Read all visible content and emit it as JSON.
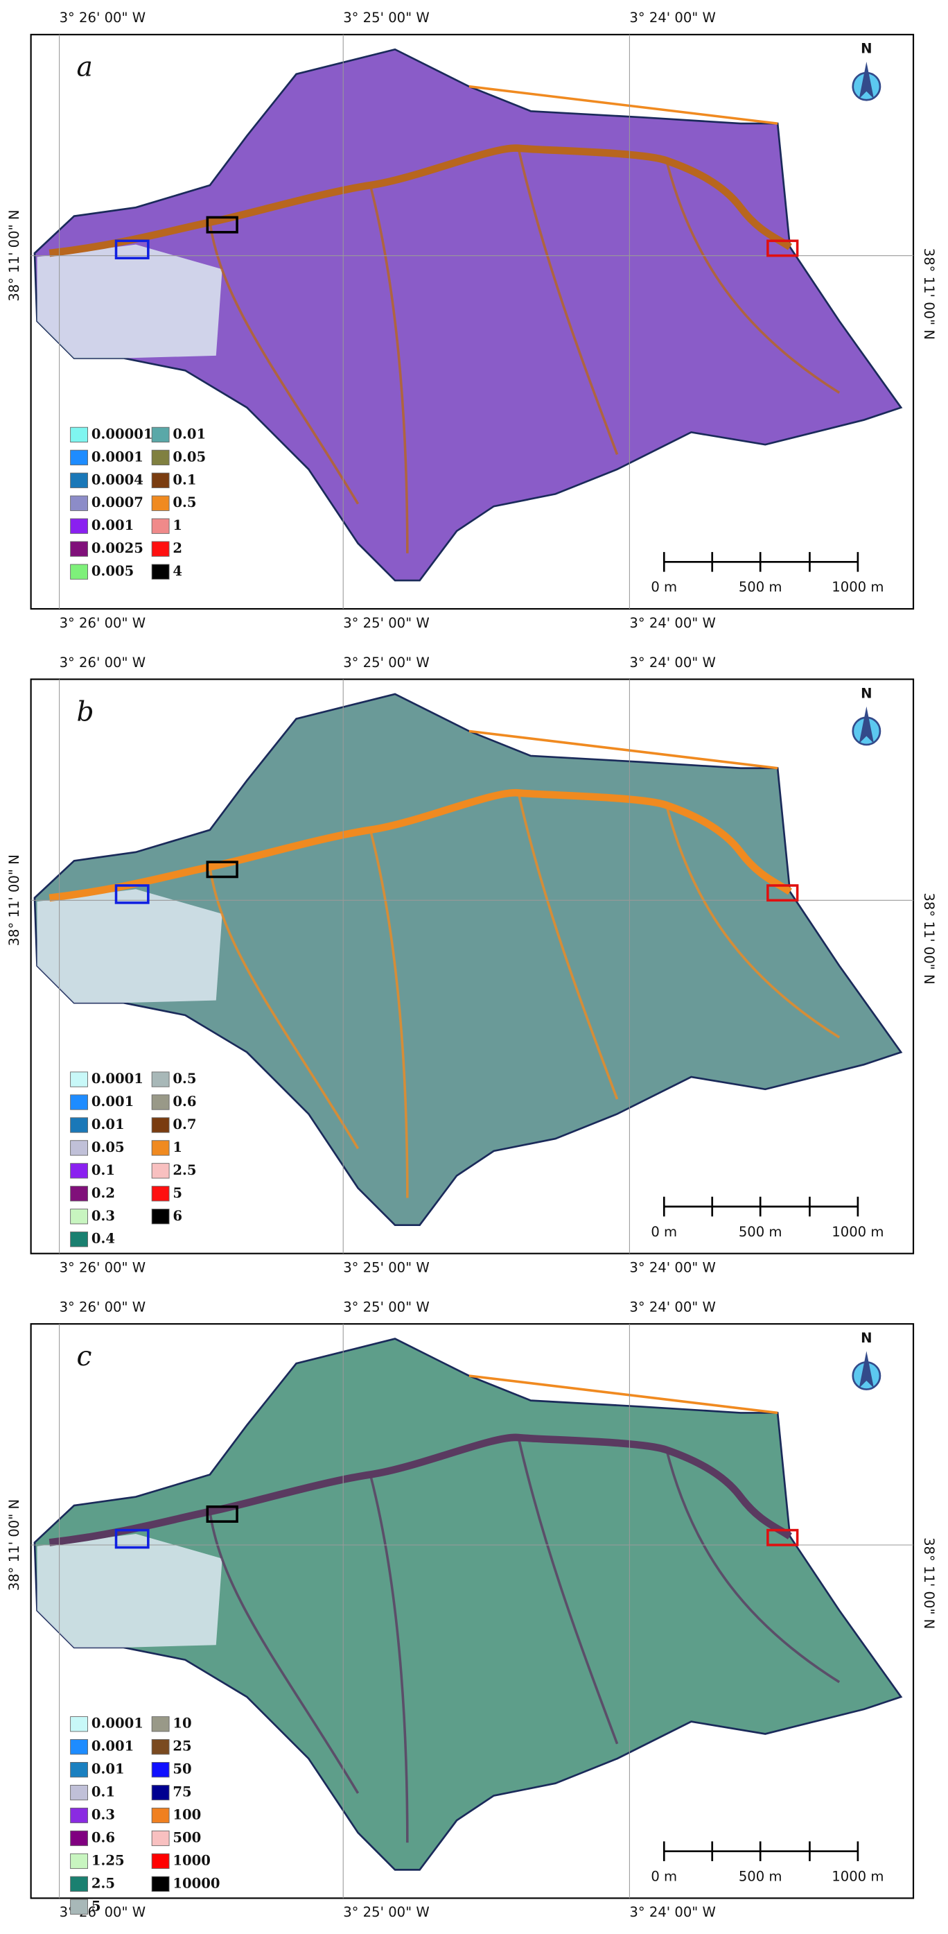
{
  "panels": [
    {
      "label": "a",
      "top_lon": [
        "3° 26' 00\" W",
        "3° 25' 00\" W",
        "3° 24' 00\" W"
      ],
      "bottom_lon": [
        "3° 26' 00\" W",
        "3° 25' 00\" W",
        "3° 24' 00\" W"
      ],
      "left_lat": "38° 11' 00\" N",
      "right_lat": "38° 11' 00\" N",
      "north": "N",
      "fill": "#8a5cc8",
      "channel_color": "#b8661e",
      "legend": [
        {
          "label": "0.00001",
          "color": "#7ff5f0"
        },
        {
          "label": "0.0001",
          "color": "#1e8cff"
        },
        {
          "label": "0.0004",
          "color": "#1a78b8"
        },
        {
          "label": "0.0007",
          "color": "#8c8cc8"
        },
        {
          "label": "0.001",
          "color": "#8a20f0"
        },
        {
          "label": "0.0025",
          "color": "#80107a"
        },
        {
          "label": "0.005",
          "color": "#7ef07a"
        },
        {
          "label": "0.01",
          "color": "#5aa8a8"
        },
        {
          "label": "0.05",
          "color": "#808040"
        },
        {
          "label": "0.1",
          "color": "#7a3c10"
        },
        {
          "label": "0.5",
          "color": "#f08a20"
        },
        {
          "label": "1",
          "color": "#f08a8a"
        },
        {
          "label": "2",
          "color": "#ff1010"
        },
        {
          "label": "4",
          "color": "#000000"
        }
      ],
      "scale": [
        "0 m",
        "500 m",
        "1000 m"
      ]
    },
    {
      "label": "b",
      "top_lon": [
        "3° 26' 00\" W",
        "3° 25' 00\" W",
        "3° 24' 00\" W"
      ],
      "bottom_lon": [
        "3° 26' 00\" W",
        "3° 25' 00\" W",
        "3° 24' 00\" W"
      ],
      "left_lat": "38° 11' 00\" N",
      "right_lat": "38° 11' 00\" N",
      "north": "N",
      "fill": "#6a9a98",
      "channel_color": "#f08a20",
      "legend": [
        {
          "label": "0.0001",
          "color": "#c8f8f8"
        },
        {
          "label": "0.001",
          "color": "#1e8cff"
        },
        {
          "label": "0.01",
          "color": "#1a78b8"
        },
        {
          "label": "0.05",
          "color": "#c0c0d8"
        },
        {
          "label": "0.1",
          "color": "#8a20f0"
        },
        {
          "label": "0.2",
          "color": "#80107a"
        },
        {
          "label": "0.3",
          "color": "#c8f5c0"
        },
        {
          "label": "0.4",
          "color": "#1a8070"
        },
        {
          "label": "0.5",
          "color": "#a8b8b8"
        },
        {
          "label": "0.6",
          "color": "#999988"
        },
        {
          "label": "0.7",
          "color": "#7a3c10"
        },
        {
          "label": "1",
          "color": "#f08a20"
        },
        {
          "label": "2.5",
          "color": "#f8c0c0"
        },
        {
          "label": "5",
          "color": "#ff1010"
        },
        {
          "label": "6",
          "color": "#000000"
        }
      ],
      "scale": [
        "0 m",
        "500 m",
        "1000 m"
      ]
    },
    {
      "label": "c",
      "top_lon": [
        "3° 26' 00\" W",
        "3° 25' 00\" W",
        "3° 24' 00\" W"
      ],
      "bottom_lon": [
        "3° 26' 00\" W",
        "3° 25' 00\" W",
        "3° 24' 00\" W"
      ],
      "left_lat": "38° 11' 00\" N",
      "right_lat": "38° 11' 00\" N",
      "north": "N",
      "fill": "#5e9e8a",
      "channel_color": "#5a3a60",
      "legend": [
        {
          "label": "0.0001",
          "color": "#c8f8f8"
        },
        {
          "label": "0.001",
          "color": "#1e8cff"
        },
        {
          "label": "0.01",
          "color": "#1a80c0"
        },
        {
          "label": "0.1",
          "color": "#c0c0d8"
        },
        {
          "label": "0.3",
          "color": "#8a2be2"
        },
        {
          "label": "0.6",
          "color": "#800080"
        },
        {
          "label": "1.25",
          "color": "#c8f5c0"
        },
        {
          "label": "2.5",
          "color": "#1a8070"
        },
        {
          "label": "5",
          "color": "#a8b8b8"
        },
        {
          "label": "10",
          "color": "#999988"
        },
        {
          "label": "25",
          "color": "#7a4a20"
        },
        {
          "label": "50",
          "color": "#1010ff"
        },
        {
          "label": "75",
          "color": "#000090"
        },
        {
          "label": "100",
          "color": "#f08020"
        },
        {
          "label": "500",
          "color": "#f8c0c0"
        },
        {
          "label": "1000",
          "color": "#ff0000"
        },
        {
          "label": "10000",
          "color": "#000000"
        }
      ],
      "scale": [
        "0 m",
        "500 m",
        "1000 m"
      ]
    }
  ]
}
